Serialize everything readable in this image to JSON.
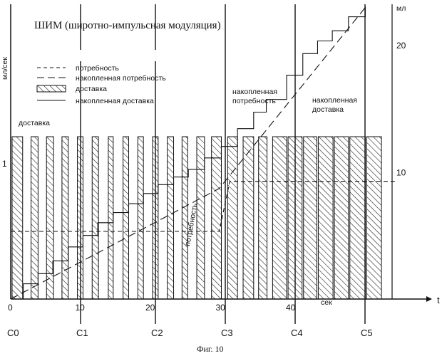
{
  "chart_data": {
    "type": "line",
    "title": "ШИМ (широтно-импульсная модуляция)",
    "caption": "Фиг. 10",
    "x_axis": {
      "label": "t",
      "unit_label": "сек",
      "range": [
        0,
        40
      ],
      "ticks": [
        {
          "value": 0,
          "label": "0"
        },
        {
          "value": 10,
          "label": "10"
        },
        {
          "value": 20,
          "label": "20"
        },
        {
          "value": 30,
          "label": "30"
        },
        {
          "value": 40,
          "label": "40"
        }
      ]
    },
    "y_left": {
      "label": "мл/сек",
      "range": [
        0,
        1.7
      ],
      "ticks": [
        {
          "value": 1,
          "label": "1"
        }
      ]
    },
    "y_right": {
      "label": "мл",
      "range": [
        0,
        23
      ],
      "ticks": [
        {
          "value": 10,
          "label": "10"
        },
        {
          "value": 20,
          "label": "20"
        }
      ]
    },
    "checkpoints": [
      {
        "label": "C0",
        "t": 0
      },
      {
        "label": "C1",
        "t": 8.3
      },
      {
        "label": "C2",
        "t": 17.8
      },
      {
        "label": "C3",
        "t": 27.7
      },
      {
        "label": "C4",
        "t": 37.7
      },
      {
        "label": "C5",
        "t": 47.6
      }
    ],
    "legend": [
      {
        "label": "потребность",
        "style": "short-dash"
      },
      {
        "label": "накопленная потребность",
        "style": "long-dash"
      },
      {
        "label": "доставка",
        "style": "hatched"
      },
      {
        "label": "накопленная доставка",
        "style": "solid"
      }
    ],
    "annotations": [
      {
        "text": "доставка"
      },
      {
        "text": "потребность"
      },
      {
        "text": "накопленная\nпотребность"
      },
      {
        "text": "накопленная\nдоставка"
      }
    ],
    "delivery_rate": 1.2,
    "delivery_pulses": [
      {
        "start": 0.2,
        "end": 1.7
      },
      {
        "start": 2.9,
        "end": 3.9
      },
      {
        "start": 5.1,
        "end": 6.1
      },
      {
        "start": 7.3,
        "end": 8.2
      },
      {
        "start": 9.5,
        "end": 10.3
      },
      {
        "start": 11.6,
        "end": 12.5
      },
      {
        "start": 13.9,
        "end": 14.6
      },
      {
        "start": 16.0,
        "end": 16.8
      },
      {
        "start": 18.1,
        "end": 18.9
      },
      {
        "start": 20.2,
        "end": 21.0
      },
      {
        "start": 22.3,
        "end": 23.2
      },
      {
        "start": 24.4,
        "end": 25.2
      },
      {
        "start": 26.5,
        "end": 27.6
      },
      {
        "start": 28.6,
        "end": 30.0
      },
      {
        "start": 30.9,
        "end": 32.3
      },
      {
        "start": 33.1,
        "end": 34.6
      },
      {
        "start": 35.3,
        "end": 36.5
      },
      {
        "start": 37.3,
        "end": 39.3
      },
      {
        "start": 39.5,
        "end": 41.5
      },
      {
        "start": 41.7,
        "end": 43.6
      },
      {
        "start": 43.8,
        "end": 45.9
      },
      {
        "start": 46.1,
        "end": 48.1
      },
      {
        "start": 48.3,
        "end": 50.5
      },
      {
        "start": 50.7,
        "end": 52.8
      }
    ],
    "demand_rate": [
      {
        "t": 0,
        "v": 0.5
      },
      {
        "t": 29.7,
        "v": 0.5
      },
      {
        "t": 31.2,
        "v": 0.87
      },
      {
        "t": 54.7,
        "v": 0.87
      }
    ],
    "cumulative_demand": [
      {
        "t": 0,
        "v": 0
      },
      {
        "t": 29.7,
        "v": 8.7
      },
      {
        "t": 50.6,
        "v": 23.0
      }
    ],
    "cumulative_delivery": [
      {
        "t": 0,
        "v": 0
      },
      {
        "t": 1.8,
        "v": 1.2
      },
      {
        "t": 3.9,
        "v": 2.0
      },
      {
        "t": 6.0,
        "v": 3.0
      },
      {
        "t": 8.2,
        "v": 4.1
      },
      {
        "t": 10.3,
        "v": 5.0
      },
      {
        "t": 12.4,
        "v": 6.0
      },
      {
        "t": 14.6,
        "v": 6.8
      },
      {
        "t": 16.8,
        "v": 7.5
      },
      {
        "t": 18.9,
        "v": 8.3
      },
      {
        "t": 21.0,
        "v": 9.0
      },
      {
        "t": 23.2,
        "v": 9.6
      },
      {
        "t": 25.3,
        "v": 10.2
      },
      {
        "t": 27.6,
        "v": 11.1
      },
      {
        "t": 30.0,
        "v": 12.0
      },
      {
        "t": 32.3,
        "v": 13.4
      },
      {
        "t": 34.6,
        "v": 14.7
      },
      {
        "t": 36.4,
        "v": 15.7
      },
      {
        "t": 39.3,
        "v": 17.6
      },
      {
        "t": 41.6,
        "v": 19.3
      },
      {
        "t": 43.7,
        "v": 20.3
      },
      {
        "t": 45.8,
        "v": 21.1
      },
      {
        "t": 48.1,
        "v": 22.2
      },
      {
        "t": 50.5,
        "v": 23.0
      }
    ]
  }
}
